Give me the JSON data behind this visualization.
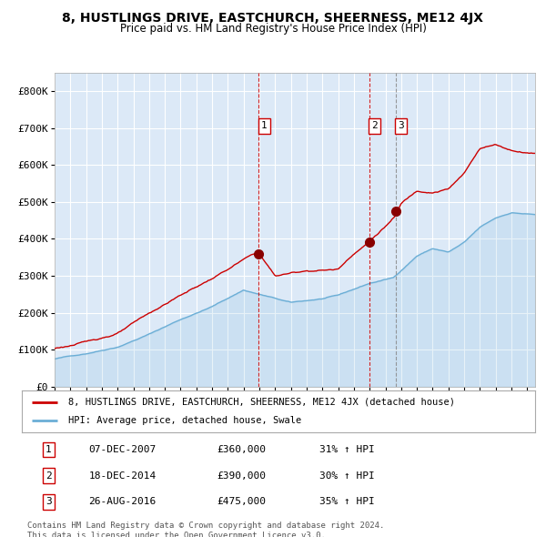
{
  "title": "8, HUSTLINGS DRIVE, EASTCHURCH, SHEERNESS, ME12 4JX",
  "subtitle": "Price paid vs. HM Land Registry's House Price Index (HPI)",
  "plot_bg_color": "#dce9f7",
  "red_line_color": "#cc0000",
  "blue_line_color": "#6baed6",
  "grid_color": "#ffffff",
  "ylim": [
    0,
    850000
  ],
  "yticks": [
    0,
    100000,
    200000,
    300000,
    400000,
    500000,
    600000,
    700000,
    800000
  ],
  "ytick_labels": [
    "£0",
    "£100K",
    "£200K",
    "£300K",
    "£400K",
    "£500K",
    "£600K",
    "£700K",
    "£800K"
  ],
  "sale_dates": [
    "07-DEC-2007",
    "18-DEC-2014",
    "26-AUG-2016"
  ],
  "sale_prices": [
    360000,
    390000,
    475000
  ],
  "sale_hpi_pct": [
    "31% ↑ HPI",
    "30% ↑ HPI",
    "35% ↑ HPI"
  ],
  "sale_labels": [
    "1",
    "2",
    "3"
  ],
  "legend_red": "8, HUSTLINGS DRIVE, EASTCHURCH, SHEERNESS, ME12 4JX (detached house)",
  "legend_blue": "HPI: Average price, detached house, Swale",
  "footer1": "Contains HM Land Registry data © Crown copyright and database right 2024.",
  "footer2": "This data is licensed under the Open Government Licence v3.0.",
  "x_start_year": 1995.0,
  "x_end_year": 2025.5,
  "blue_waypoints_x": [
    1995,
    1997,
    1999,
    2001,
    2003,
    2005,
    2007,
    2008.5,
    2010,
    2012,
    2013,
    2015,
    2016.5,
    2018,
    2019,
    2020,
    2021,
    2022,
    2023,
    2024,
    2025.5
  ],
  "blue_waypoints_y": [
    75000,
    90000,
    110000,
    145000,
    185000,
    220000,
    265000,
    248000,
    230000,
    240000,
    248000,
    280000,
    295000,
    355000,
    375000,
    365000,
    390000,
    430000,
    455000,
    470000,
    465000
  ],
  "red_waypoints_x": [
    1995,
    1997,
    1999,
    2001,
    2003,
    2005,
    2007,
    2007.9,
    2009,
    2011,
    2013,
    2014,
    2014.9,
    2016.6,
    2017,
    2018,
    2019,
    2020,
    2021,
    2022,
    2023,
    2024,
    2025.5
  ],
  "red_waypoints_y": [
    103000,
    120000,
    145000,
    195000,
    245000,
    290000,
    340000,
    360000,
    295000,
    310000,
    315000,
    360000,
    390000,
    460000,
    495000,
    530000,
    530000,
    540000,
    580000,
    650000,
    660000,
    645000,
    640000
  ],
  "sale_year_vals": [
    2007.958,
    2014.958,
    2016.646
  ]
}
